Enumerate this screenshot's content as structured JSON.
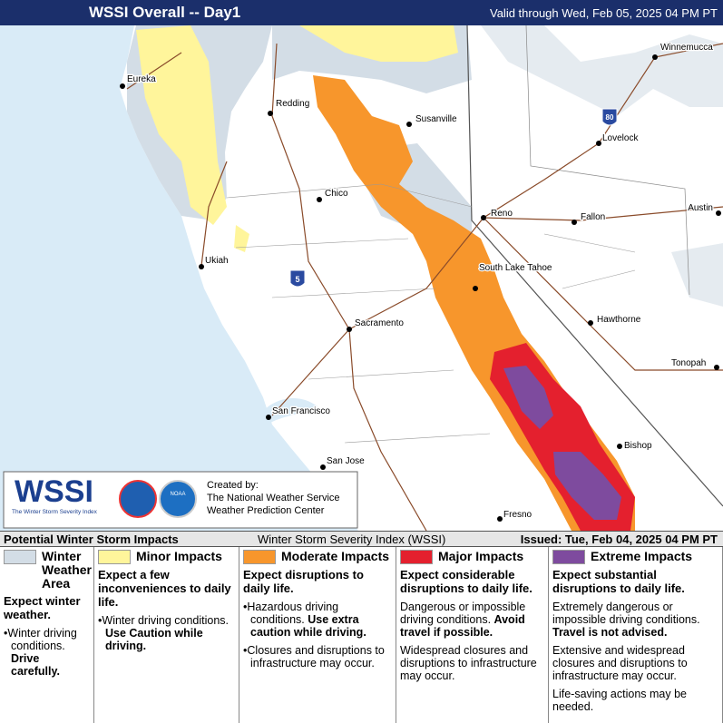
{
  "header": {
    "title": "WSSI Overall -- Day1",
    "valid": "Valid through Wed, Feb 05, 2025 04 PM PT"
  },
  "map": {
    "cities": [
      "Eureka",
      "Redding",
      "Susanville",
      "Winnemucca",
      "Lovelock",
      "Chico",
      "Reno",
      "Fallon",
      "Austin",
      "Ukiah",
      "South Lake Tahoe",
      "Hawthorne",
      "Sacramento",
      "Tonopah",
      "San Francisco",
      "Bishop",
      "San Jose",
      "Fresno"
    ],
    "interstates": [
      "80",
      "5"
    ]
  },
  "logo": {
    "name": "WSSI",
    "subtitle": "The Winter Storm Severity Index",
    "agency": "NOAA",
    "created_by": "Created by:",
    "org1": "The National Weather Service",
    "org2": "Weather Prediction Center"
  },
  "legend": {
    "title": "Potential Winter Storm Impacts",
    "index_name": "Winter Storm Severity Index (WSSI)",
    "issued": "Issued: Tue, Feb 04, 2025 04 PM PT",
    "levels": [
      {
        "name": "Winter Weather Area",
        "color": "#d3dde6",
        "summary": "Expect winter weather.",
        "bulleted": true,
        "notes": [
          {
            "text": "Winter driving conditions.",
            "bold": "Drive carefully."
          }
        ]
      },
      {
        "name": "Minor Impacts",
        "color": "#fff59b",
        "summary": "Expect a few inconveniences to daily life.",
        "bulleted": true,
        "notes": [
          {
            "text": "Winter driving conditions.",
            "bold": "Use Caution while driving."
          }
        ]
      },
      {
        "name": "Moderate Impacts",
        "color": "#f7962c",
        "summary": "Expect disruptions to daily life.",
        "bulleted": true,
        "notes": [
          {
            "text": "Hazardous driving conditions.",
            "bold": "Use extra caution while driving."
          },
          {
            "text": "Closures and disruptions to infrastructure may occur."
          }
        ]
      },
      {
        "name": "Major Impacts",
        "color": "#e4202e",
        "summary": "Expect considerable disruptions to daily life.",
        "bulleted": false,
        "notes": [
          {
            "text": "Dangerous or impossible driving conditions.",
            "bold": "Avoid travel if possible."
          },
          {
            "text": "Widespread closures and disruptions to infrastructure may occur."
          }
        ]
      },
      {
        "name": "Extreme Impacts",
        "color": "#7e4b9e",
        "summary": "Expect substantial disruptions to daily life.",
        "bulleted": false,
        "notes": [
          {
            "text": "Extremely dangerous or impossible driving conditions.",
            "bold": "Travel is not advised."
          },
          {
            "text": "Extensive and widespread closures and disruptions to infrastructure may occur."
          },
          {
            "text": "Life-saving actions may be needed."
          }
        ]
      }
    ]
  }
}
